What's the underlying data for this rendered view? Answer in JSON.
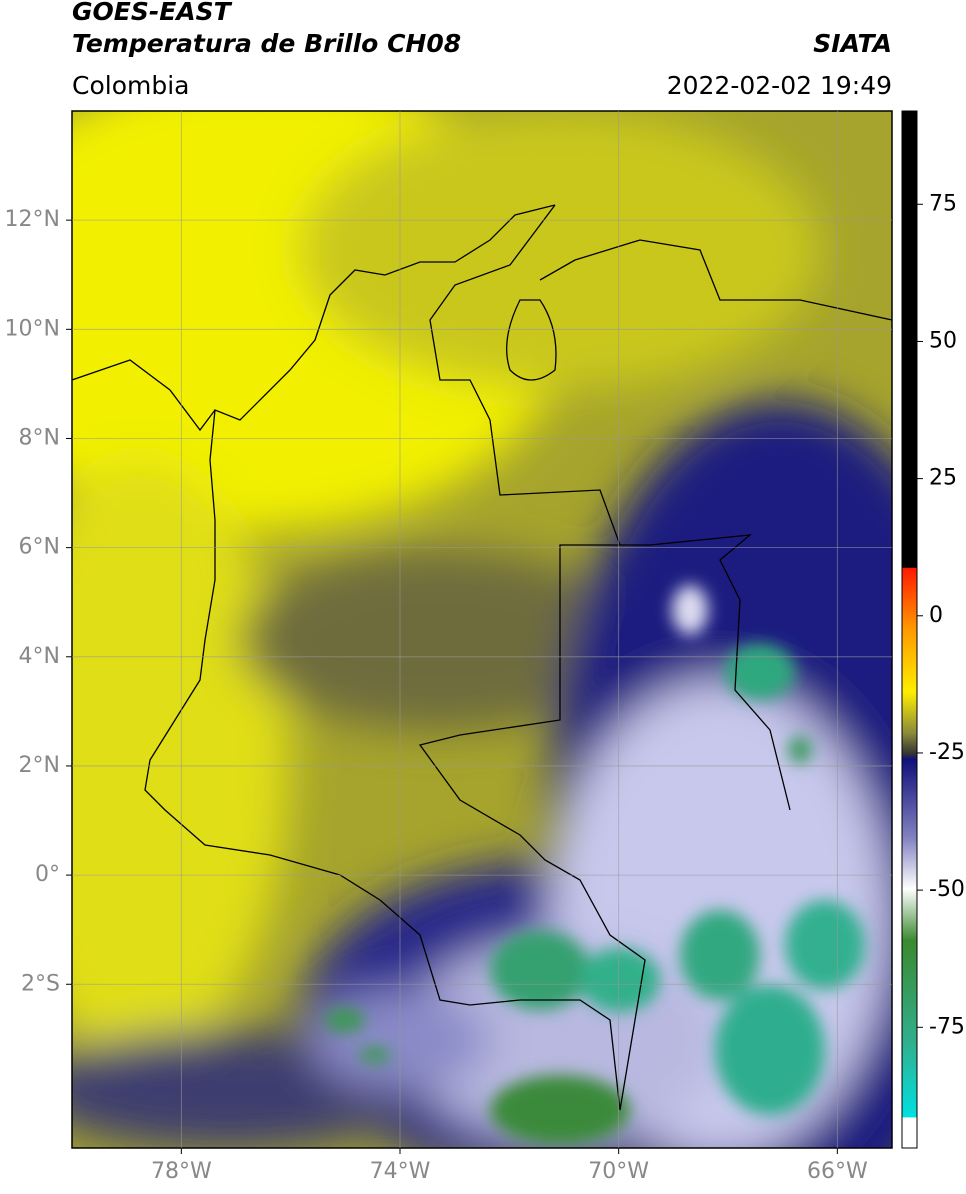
{
  "header": {
    "title": "GOES-EAST",
    "subtitle": "Temperatura de Brillo CH08",
    "region": "Colombia",
    "source": "SIATA",
    "datetime": "2022-02-02 19:49"
  },
  "map": {
    "xlim": [
      -80,
      -65
    ],
    "ylim": [
      -5,
      14
    ],
    "xticks": [
      {
        "value": -78,
        "label": "78°W"
      },
      {
        "value": -74,
        "label": "74°W"
      },
      {
        "value": -70,
        "label": "70°W"
      },
      {
        "value": -66,
        "label": "66°W"
      }
    ],
    "yticks": [
      {
        "value": 12,
        "label": "12°N"
      },
      {
        "value": 10,
        "label": "10°N"
      },
      {
        "value": 8,
        "label": "8°N"
      },
      {
        "value": 6,
        "label": "6°N"
      },
      {
        "value": 4,
        "label": "4°N"
      },
      {
        "value": 2,
        "label": "2°N"
      },
      {
        "value": 0,
        "label": "0°"
      },
      {
        "value": -2,
        "label": "2°S"
      }
    ],
    "grid": true
  },
  "colorbar": {
    "lim": [
      -97,
      92
    ],
    "ticks": [
      75,
      50,
      25,
      0,
      -25,
      -50,
      -75
    ]
  }
}
